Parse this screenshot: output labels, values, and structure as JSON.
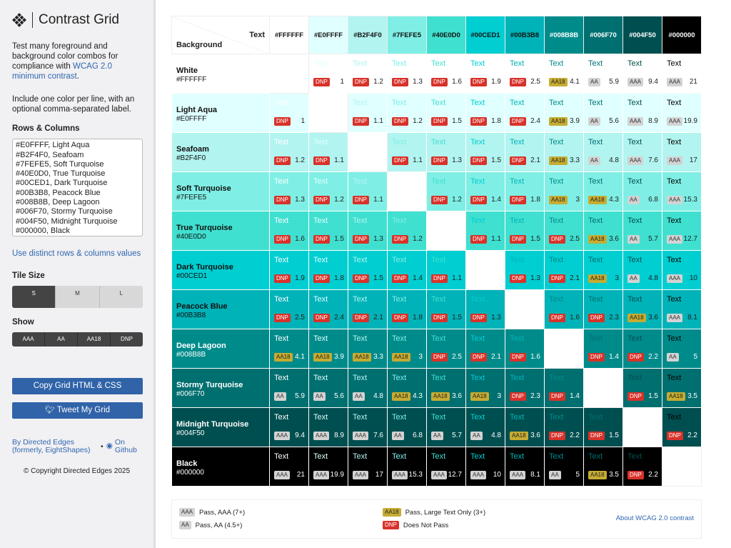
{
  "app": {
    "title": "Contrast Grid"
  },
  "sidebar": {
    "intro": "Test many foreground and background color combos for compliance with ",
    "intro_link": "WCAG 2.0 minimum contrast",
    "intro_end": ".",
    "instructions": "Include one color per line, with an optional comma-separated label.",
    "rows_heading": "Rows & Columns",
    "rows_value": "#FFFFFF, White\n#E0FFFF, Light Aqua\n#B2F4F0, Seafoam\n#7FEFE5, Soft Turquoise\n#40E0D0, True Turquoise\n#00CED1, Dark Turquoise\n#00B3B8, Peacock Blue\n#008B8B, Deep Lagoon\n#006F70, Stormy Turquoise\n#004F50, Midnight Turquoise\n#000000, Black",
    "distinct_link": "Use distinct rows & columns values",
    "tile_heading": "Tile Size",
    "tile_sizes": [
      {
        "label": "S",
        "dims": "(80×80)",
        "selected": true
      },
      {
        "label": "M",
        "dims": "(100×100)",
        "selected": false
      },
      {
        "label": "L",
        "dims": "(150×150)",
        "selected": false
      }
    ],
    "show_heading": "Show",
    "show_options": [
      "AAA",
      "AA",
      "AA18",
      "DNP"
    ],
    "copy_button": "Copy Grid HTML & CSS",
    "tweet_button": "Tweet My Grid",
    "by_link": "By Directed Edges (formerly, EightShapes)",
    "github_link": "On Github",
    "copyright": "© Copyright Directed Edges 2025"
  },
  "grid": {
    "corner_text": "Text",
    "corner_background": "Background",
    "sample_text": "Text",
    "colors": [
      {
        "name": "White",
        "hex": "#FFFFFF"
      },
      {
        "name": "Light Aqua",
        "hex": "#E0FFFF"
      },
      {
        "name": "Seafoam",
        "hex": "#B2F4F0"
      },
      {
        "name": "Soft Turquoise",
        "hex": "#7FEFE5"
      },
      {
        "name": "True Turquoise",
        "hex": "#40E0D0"
      },
      {
        "name": "Dark Turquoise",
        "hex": "#00CED1"
      },
      {
        "name": "Peacock Blue",
        "hex": "#00B3B8"
      },
      {
        "name": "Deep Lagoon",
        "hex": "#008B8B"
      },
      {
        "name": "Stormy Turquoise",
        "hex": "#006F70"
      },
      {
        "name": "Midnight Turquoise",
        "hex": "#004F50"
      },
      {
        "name": "Black",
        "hex": "#000000"
      }
    ],
    "cells": [
      [
        null,
        [
          "DNP",
          "1"
        ],
        [
          "DNP",
          "1.2"
        ],
        [
          "DNP",
          "1.3"
        ],
        [
          "DNP",
          "1.6"
        ],
        [
          "DNP",
          "1.9"
        ],
        [
          "DNP",
          "2.5"
        ],
        [
          "AA18",
          "4.1"
        ],
        [
          "AA",
          "5.9"
        ],
        [
          "AAA",
          "9.4"
        ],
        [
          "AAA",
          "21"
        ]
      ],
      [
        [
          "DNP",
          "1"
        ],
        null,
        [
          "DNP",
          "1.1"
        ],
        [
          "DNP",
          "1.2"
        ],
        [
          "DNP",
          "1.5"
        ],
        [
          "DNP",
          "1.8"
        ],
        [
          "DNP",
          "2.4"
        ],
        [
          "AA18",
          "3.9"
        ],
        [
          "AA",
          "5.6"
        ],
        [
          "AAA",
          "8.9"
        ],
        [
          "AAA",
          "19.9"
        ]
      ],
      [
        [
          "DNP",
          "1.2"
        ],
        [
          "DNP",
          "1.1"
        ],
        null,
        [
          "DNP",
          "1.1"
        ],
        [
          "DNP",
          "1.3"
        ],
        [
          "DNP",
          "1.5"
        ],
        [
          "DNP",
          "2.1"
        ],
        [
          "AA18",
          "3.3"
        ],
        [
          "AA",
          "4.8"
        ],
        [
          "AAA",
          "7.6"
        ],
        [
          "AAA",
          "17"
        ]
      ],
      [
        [
          "DNP",
          "1.3"
        ],
        [
          "DNP",
          "1.2"
        ],
        [
          "DNP",
          "1.1"
        ],
        null,
        [
          "DNP",
          "1.2"
        ],
        [
          "DNP",
          "1.4"
        ],
        [
          "DNP",
          "1.8"
        ],
        [
          "AA18",
          "3"
        ],
        [
          "AA18",
          "4.3"
        ],
        [
          "AA",
          "6.8"
        ],
        [
          "AAA",
          "15.3"
        ]
      ],
      [
        [
          "DNP",
          "1.6"
        ],
        [
          "DNP",
          "1.5"
        ],
        [
          "DNP",
          "1.3"
        ],
        [
          "DNP",
          "1.2"
        ],
        null,
        [
          "DNP",
          "1.1"
        ],
        [
          "DNP",
          "1.5"
        ],
        [
          "DNP",
          "2.5"
        ],
        [
          "AA18",
          "3.6"
        ],
        [
          "AA",
          "5.7"
        ],
        [
          "AAA",
          "12.7"
        ]
      ],
      [
        [
          "DNP",
          "1.9"
        ],
        [
          "DNP",
          "1.8"
        ],
        [
          "DNP",
          "1.5"
        ],
        [
          "DNP",
          "1.4"
        ],
        [
          "DNP",
          "1.1"
        ],
        null,
        [
          "DNP",
          "1.3"
        ],
        [
          "DNP",
          "2.1"
        ],
        [
          "AA18",
          "3"
        ],
        [
          "AA",
          "4.8"
        ],
        [
          "AAA",
          "10"
        ]
      ],
      [
        [
          "DNP",
          "2.5"
        ],
        [
          "DNP",
          "2.4"
        ],
        [
          "DNP",
          "2.1"
        ],
        [
          "DNP",
          "1.8"
        ],
        [
          "DNP",
          "1.5"
        ],
        [
          "DNP",
          "1.3"
        ],
        null,
        [
          "DNP",
          "1.6"
        ],
        [
          "DNP",
          "2.3"
        ],
        [
          "AA18",
          "3.6"
        ],
        [
          "AAA",
          "8.1"
        ]
      ],
      [
        [
          "AA18",
          "4.1"
        ],
        [
          "AA18",
          "3.9"
        ],
        [
          "AA18",
          "3.3"
        ],
        [
          "AA18",
          "3"
        ],
        [
          "DNP",
          "2.5"
        ],
        [
          "DNP",
          "2.1"
        ],
        [
          "DNP",
          "1.6"
        ],
        null,
        [
          "DNP",
          "1.4"
        ],
        [
          "DNP",
          "2.2"
        ],
        [
          "AA",
          "5"
        ]
      ],
      [
        [
          "AA",
          "5.9"
        ],
        [
          "AA",
          "5.6"
        ],
        [
          "AA",
          "4.8"
        ],
        [
          "AA18",
          "4.3"
        ],
        [
          "AA18",
          "3.6"
        ],
        [
          "AA18",
          "3"
        ],
        [
          "DNP",
          "2.3"
        ],
        [
          "DNP",
          "1.4"
        ],
        null,
        [
          "DNP",
          "1.5"
        ],
        [
          "AA18",
          "3.5"
        ]
      ],
      [
        [
          "AAA",
          "9.4"
        ],
        [
          "AAA",
          "8.9"
        ],
        [
          "AAA",
          "7.6"
        ],
        [
          "AA",
          "6.8"
        ],
        [
          "AA",
          "5.7"
        ],
        [
          "AA",
          "4.8"
        ],
        [
          "AA18",
          "3.6"
        ],
        [
          "DNP",
          "2.2"
        ],
        [
          "DNP",
          "1.5"
        ],
        null,
        [
          "DNP",
          "2.2"
        ]
      ],
      [
        [
          "AAA",
          "21"
        ],
        [
          "AAA",
          "19.9"
        ],
        [
          "AAA",
          "17"
        ],
        [
          "AAA",
          "15.3"
        ],
        [
          "AAA",
          "12.7"
        ],
        [
          "AAA",
          "10"
        ],
        [
          "AAA",
          "8.1"
        ],
        [
          "AA",
          "5"
        ],
        [
          "AA18",
          "3.5"
        ],
        [
          "DNP",
          "2.2"
        ],
        null
      ]
    ]
  },
  "legend": {
    "items": [
      {
        "badge": "AAA",
        "label": "Pass, AAA (7+)"
      },
      {
        "badge": "AA",
        "label": "Pass, AA (4.5+)"
      },
      {
        "badge": "AA18",
        "label": "Pass, Large Text Only (3+)"
      },
      {
        "badge": "DNP",
        "label": "Does Not Pass"
      }
    ],
    "about_link": "About WCAG 2.0 contrast"
  }
}
